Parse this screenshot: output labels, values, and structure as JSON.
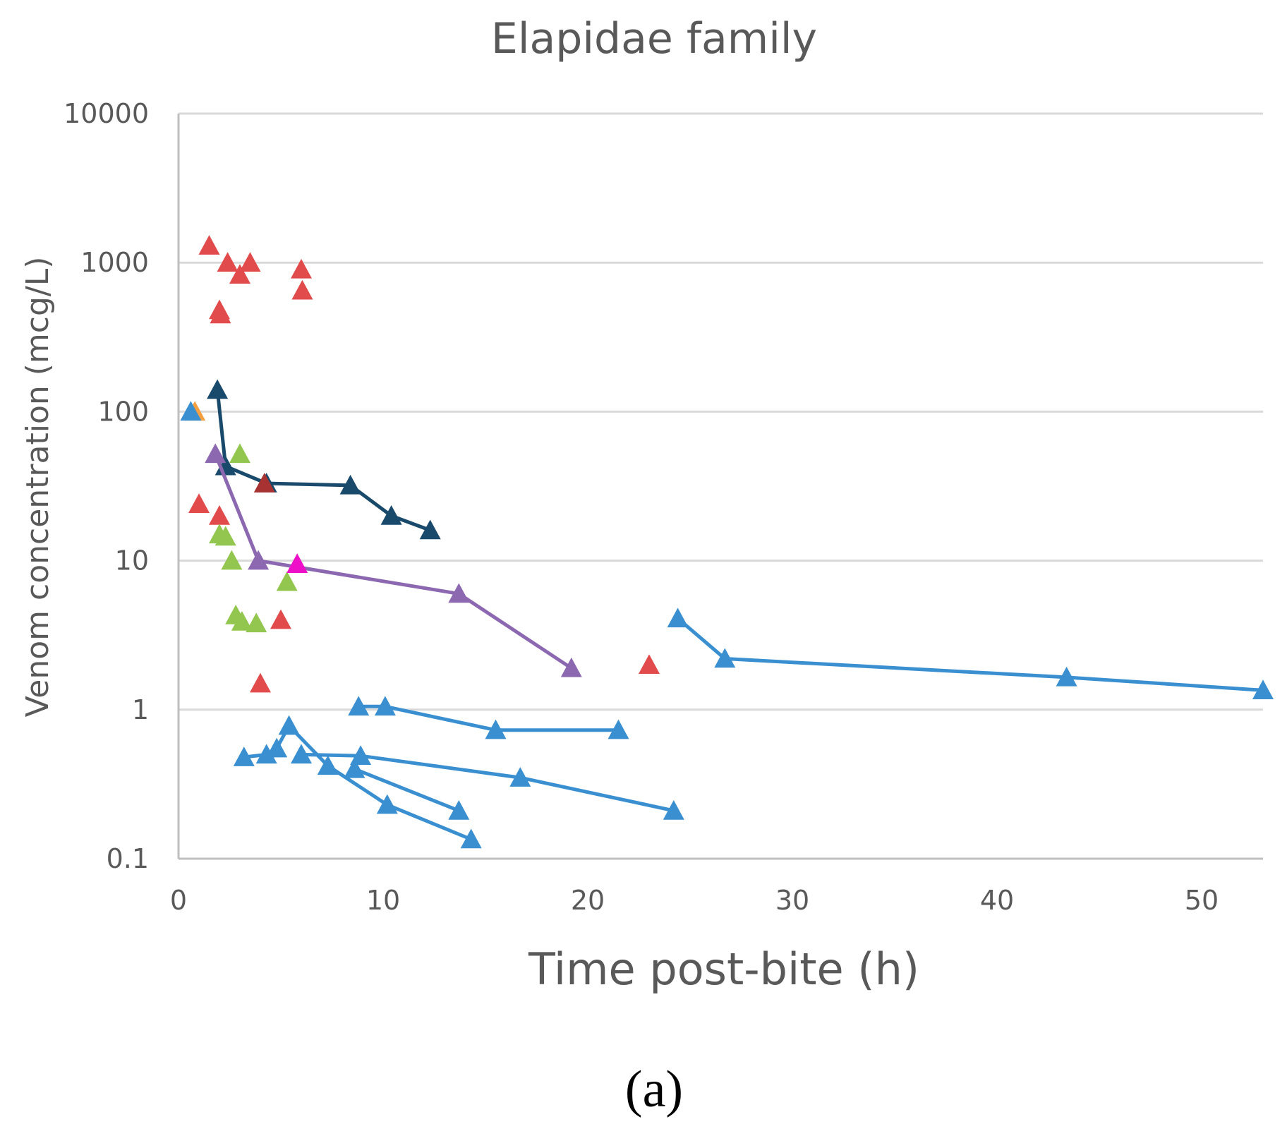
{
  "chart_data": {
    "type": "scatter",
    "title": "Elapidae family",
    "xlabel": "Time post-bite (h)",
    "ylabel": "Venom concentration (mcg/L)",
    "panel_label": "(a)",
    "xlim": [
      0,
      53
    ],
    "ylim": [
      0.1,
      10000
    ],
    "yscale": "log",
    "grid": true,
    "legend": "none",
    "marker": "triangle",
    "x_ticks": [
      0,
      10,
      20,
      30,
      40,
      50
    ],
    "x_tick_labels": [
      "0",
      "10",
      "20",
      "30",
      "40",
      "50"
    ],
    "y_ticks": [
      0.1,
      1,
      10,
      100,
      1000,
      10000
    ],
    "y_tick_labels": [
      "0.1",
      "1",
      "10",
      "100",
      "1000",
      "10000"
    ],
    "colors": {
      "red": "#e24b4b",
      "green": "#92c64e",
      "orange": "#f5a040",
      "light_blue": "#3a8fd0",
      "navy": "#1a4a6b",
      "purple": "#8c68b0",
      "magenta": "#ee10c8",
      "dark_red": "#a83232",
      "axis": "#bfbfbf",
      "grid": "#d9d9d9",
      "text": "#595959"
    },
    "series": [
      {
        "name": "red-points",
        "color": "#e24b4b",
        "connected": false,
        "points": [
          [
            1.5,
            1300
          ],
          [
            2.0,
            480
          ],
          [
            2.05,
            450
          ],
          [
            2.4,
            1000
          ],
          [
            3.0,
            830
          ],
          [
            3.5,
            1000
          ],
          [
            6.0,
            900
          ],
          [
            6.05,
            650
          ],
          [
            1.0,
            24
          ],
          [
            2.0,
            20
          ],
          [
            5.0,
            4
          ],
          [
            4.0,
            1.5
          ],
          [
            23.0,
            2.0
          ]
        ]
      },
      {
        "name": "green-points",
        "color": "#92c64e",
        "connected": false,
        "points": [
          [
            3.0,
            52
          ],
          [
            2.0,
            15
          ],
          [
            2.3,
            14.5
          ],
          [
            2.6,
            10
          ],
          [
            2.8,
            4.3
          ],
          [
            3.1,
            3.9
          ],
          [
            3.8,
            3.8
          ],
          [
            5.3,
            7.2
          ]
        ]
      },
      {
        "name": "orange-point",
        "color": "#f5a040",
        "connected": false,
        "points": [
          [
            0.8,
            100
          ]
        ]
      },
      {
        "name": "light-blue-point",
        "color": "#3a8fd0",
        "connected": false,
        "points": [
          [
            0.6,
            100
          ]
        ]
      },
      {
        "name": "navy-series",
        "color": "#1a4a6b",
        "connected": true,
        "points": [
          [
            1.9,
            140
          ],
          [
            2.3,
            43
          ],
          [
            4.3,
            33
          ],
          [
            8.4,
            32
          ],
          [
            10.4,
            20
          ],
          [
            12.3,
            16
          ]
        ]
      },
      {
        "name": "dark-red-point",
        "color": "#a83232",
        "connected": false,
        "points": [
          [
            4.2,
            33
          ]
        ]
      },
      {
        "name": "purple-series",
        "color": "#8c68b0",
        "connected": true,
        "points": [
          [
            1.8,
            52
          ],
          [
            3.9,
            10
          ],
          [
            13.7,
            6
          ],
          [
            19.2,
            1.9
          ]
        ]
      },
      {
        "name": "magenta-point",
        "color": "#ee10c8",
        "connected": false,
        "points": [
          [
            5.8,
            9.5
          ]
        ]
      },
      {
        "name": "blue-series-1",
        "color": "#3a8fd0",
        "connected": true,
        "points": [
          [
            24.4,
            4.1
          ],
          [
            26.7,
            2.2
          ],
          [
            43.4,
            1.65
          ],
          [
            53.0,
            1.35
          ]
        ]
      },
      {
        "name": "blue-series-2",
        "color": "#3a8fd0",
        "connected": true,
        "points": [
          [
            8.8,
            1.05
          ],
          [
            10.1,
            1.05
          ],
          [
            15.5,
            0.73
          ],
          [
            21.5,
            0.73
          ]
        ]
      },
      {
        "name": "blue-series-3",
        "color": "#3a8fd0",
        "connected": true,
        "points": [
          [
            3.2,
            0.48
          ],
          [
            4.3,
            0.5
          ],
          [
            4.8,
            0.55
          ],
          [
            5.4,
            0.78
          ],
          [
            7.3,
            0.42
          ],
          [
            10.2,
            0.23
          ],
          [
            14.3,
            0.135
          ]
        ]
      },
      {
        "name": "blue-series-4",
        "color": "#3a8fd0",
        "connected": true,
        "points": [
          [
            6.0,
            0.5
          ],
          [
            8.9,
            0.49
          ],
          [
            16.7,
            0.35
          ],
          [
            24.2,
            0.21
          ]
        ]
      },
      {
        "name": "blue-series-5",
        "color": "#3a8fd0",
        "connected": true,
        "points": [
          [
            8.6,
            0.4
          ],
          [
            13.7,
            0.21
          ]
        ]
      }
    ]
  }
}
